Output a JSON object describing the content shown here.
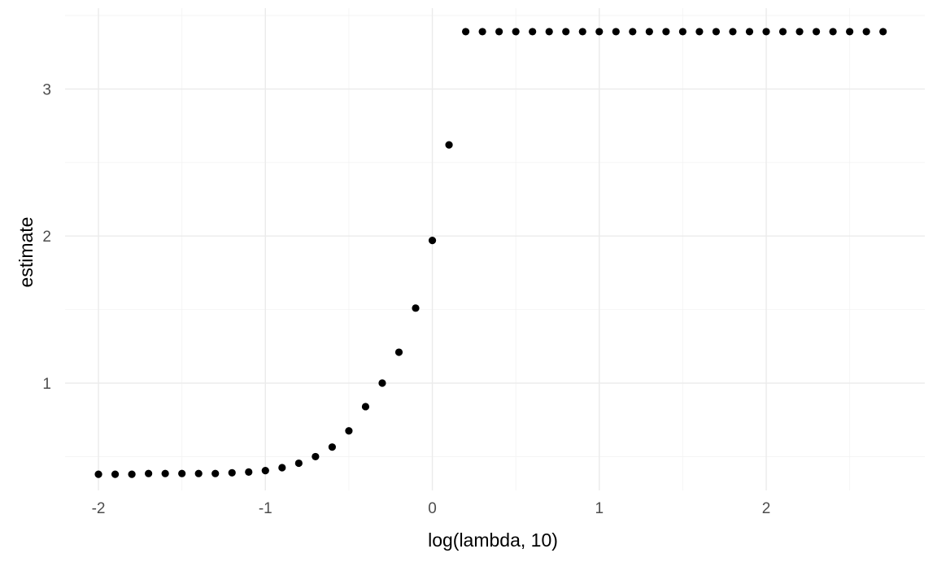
{
  "chart_data": {
    "type": "scatter",
    "title": "",
    "xlabel": "log(lambda, 10)",
    "ylabel": "estimate",
    "xlim": [
      -2.2,
      2.95
    ],
    "ylim": [
      0.27,
      3.55
    ],
    "x_ticks": [
      -2,
      -1,
      0,
      1,
      2
    ],
    "x_tick_labels": [
      "-2",
      "-1",
      "0",
      "1",
      "2"
    ],
    "y_ticks": [
      1,
      2,
      3
    ],
    "y_tick_labels": [
      "1",
      "2",
      "3"
    ],
    "grid": true,
    "legend": "none",
    "point_color": "#000000",
    "series": [
      {
        "x": [
          -2.0,
          -1.9,
          -1.8,
          -1.7,
          -1.6,
          -1.5,
          -1.4,
          -1.3,
          -1.2,
          -1.1,
          -1.0,
          -0.9,
          -0.8,
          -0.7,
          -0.6,
          -0.5,
          -0.4,
          -0.3,
          -0.2,
          -0.1,
          0.0,
          0.1,
          0.2,
          0.3,
          0.4,
          0.5,
          0.6,
          0.7,
          0.8,
          0.9,
          1.0,
          1.1,
          1.2,
          1.3,
          1.4,
          1.5,
          1.6,
          1.7,
          1.8,
          1.9,
          2.0,
          2.1,
          2.2,
          2.3,
          2.4,
          2.5,
          2.6,
          2.7
        ],
        "y": [
          0.38,
          0.38,
          0.38,
          0.385,
          0.385,
          0.385,
          0.385,
          0.385,
          0.39,
          0.395,
          0.405,
          0.425,
          0.455,
          0.5,
          0.565,
          0.675,
          0.84,
          1.0,
          1.21,
          1.51,
          1.97,
          2.62,
          3.39,
          3.39,
          3.39,
          3.39,
          3.39,
          3.39,
          3.39,
          3.39,
          3.39,
          3.39,
          3.39,
          3.39,
          3.39,
          3.39,
          3.39,
          3.39,
          3.39,
          3.39,
          3.39,
          3.39,
          3.39,
          3.39,
          3.39,
          3.39,
          3.39,
          3.39
        ]
      }
    ]
  }
}
